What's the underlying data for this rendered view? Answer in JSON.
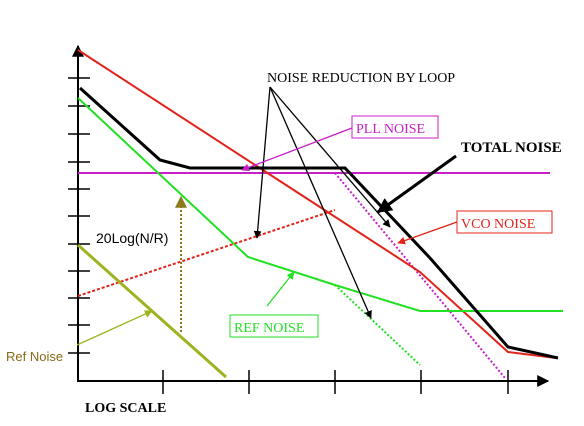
{
  "labels": {
    "noise_reduction": "NOISE REDUCTION BY LOOP",
    "pll_noise": "PLL NOISE",
    "total_noise": "TOTAL NOISE",
    "vco_noise": "VCO NOISE",
    "log_ratio": "20Log(N/R)",
    "ref_noise_box": "REF NOISE",
    "ref_noise_side": "Ref Noise",
    "x_axis": "LOG SCALE"
  },
  "colors": {
    "total": "#000000",
    "vco": "#e2231a",
    "pll": "#c81ec8",
    "ref": "#22e022",
    "ref_source": "#9fb21f",
    "ratio_arrow": "#8a7a1a",
    "ref_noise_text": "#8a6a1a"
  }
}
